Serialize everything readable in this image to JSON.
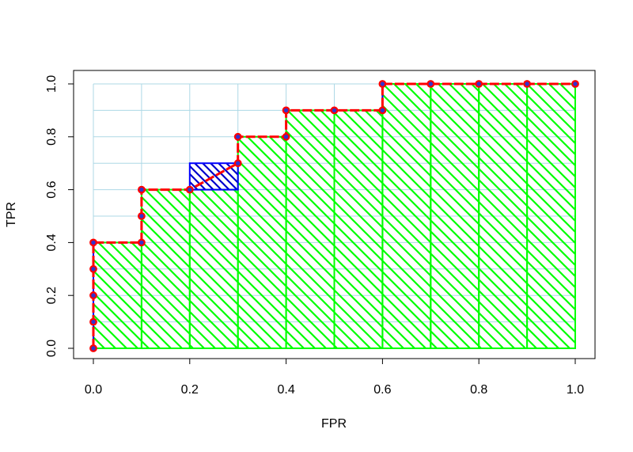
{
  "chart_data": {
    "type": "line",
    "title": "",
    "xlabel": "FPR",
    "ylabel": "TPR",
    "xlim": [
      0,
      1
    ],
    "ylim": [
      0,
      1
    ],
    "x_ticks": [
      "0.0",
      "0.2",
      "0.4",
      "0.6",
      "0.8",
      "1.0"
    ],
    "y_ticks": [
      "0.0",
      "0.2",
      "0.4",
      "0.6",
      "0.8",
      "1.0"
    ],
    "grid": true,
    "grid_step": 0.1,
    "points": [
      {
        "x": 0.0,
        "y": 0.0
      },
      {
        "x": 0.0,
        "y": 0.1
      },
      {
        "x": 0.0,
        "y": 0.2
      },
      {
        "x": 0.0,
        "y": 0.3
      },
      {
        "x": 0.0,
        "y": 0.4
      },
      {
        "x": 0.1,
        "y": 0.4
      },
      {
        "x": 0.1,
        "y": 0.5
      },
      {
        "x": 0.1,
        "y": 0.6
      },
      {
        "x": 0.2,
        "y": 0.6
      },
      {
        "x": 0.3,
        "y": 0.7
      },
      {
        "x": 0.3,
        "y": 0.8
      },
      {
        "x": 0.4,
        "y": 0.8
      },
      {
        "x": 0.4,
        "y": 0.9
      },
      {
        "x": 0.5,
        "y": 0.9
      },
      {
        "x": 0.6,
        "y": 0.9
      },
      {
        "x": 0.6,
        "y": 1.0
      },
      {
        "x": 0.7,
        "y": 1.0
      },
      {
        "x": 0.8,
        "y": 1.0
      },
      {
        "x": 0.9,
        "y": 1.0
      },
      {
        "x": 1.0,
        "y": 1.0
      }
    ],
    "green_area_steps": [
      {
        "x0": 0.0,
        "x1": 0.1,
        "y": 0.4
      },
      {
        "x0": 0.1,
        "x1": 0.2,
        "y": 0.6
      },
      {
        "x0": 0.2,
        "x1": 0.3,
        "y": 0.6
      },
      {
        "x0": 0.3,
        "x1": 0.4,
        "y": 0.8
      },
      {
        "x0": 0.4,
        "x1": 0.5,
        "y": 0.9
      },
      {
        "x0": 0.5,
        "x1": 0.6,
        "y": 0.9
      },
      {
        "x0": 0.6,
        "x1": 0.7,
        "y": 1.0
      },
      {
        "x0": 0.7,
        "x1": 0.8,
        "y": 1.0
      },
      {
        "x0": 0.8,
        "x1": 0.9,
        "y": 1.0
      },
      {
        "x0": 0.9,
        "x1": 1.0,
        "y": 1.0
      }
    ],
    "blue_area_box": {
      "x0": 0.2,
      "x1": 0.3,
      "y0": 0.6,
      "y1": 0.7
    },
    "colors": {
      "line": "#ff0000",
      "points": "#ff0000",
      "step_outline": "#0000ff",
      "green_hatch": "#00ff00",
      "blue_hatch": "#0000cc",
      "grid": "#add8e6",
      "axis": "#000000"
    }
  }
}
